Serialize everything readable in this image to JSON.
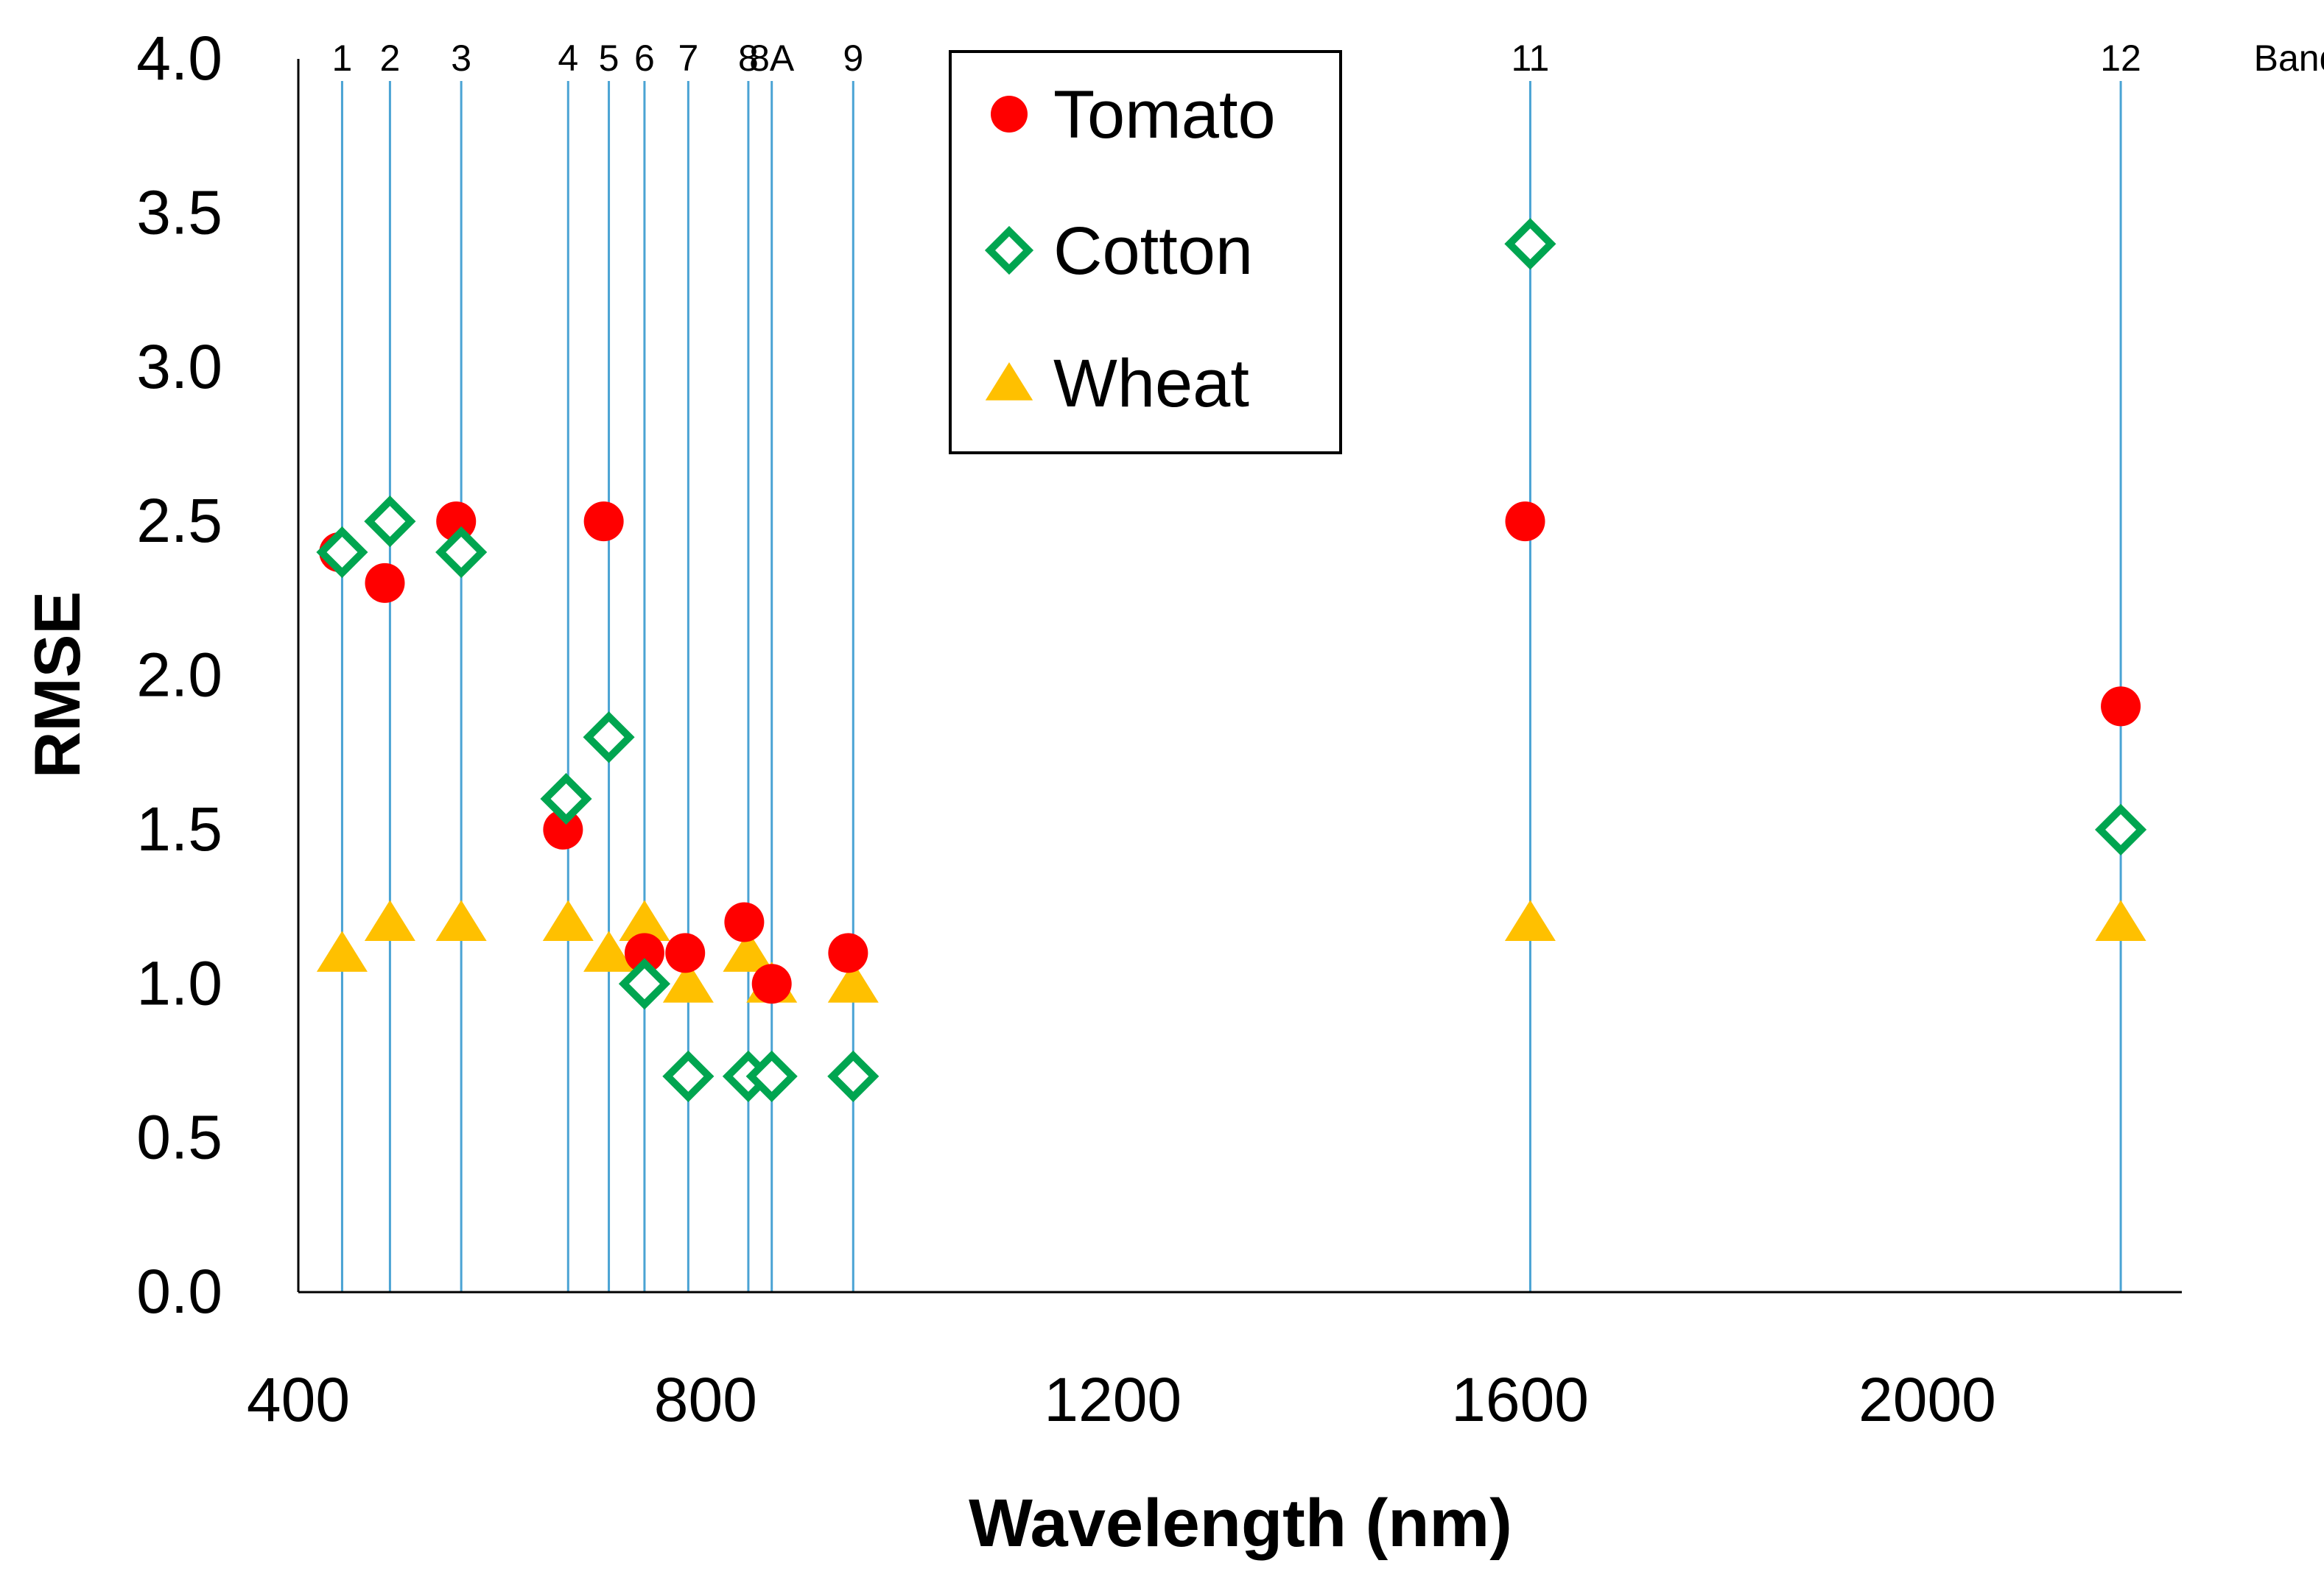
{
  "chart_data": {
    "type": "scatter",
    "title": "",
    "xlabel": "Wavelength (nm)",
    "ylabel": "RMSE",
    "xlim": [
      400,
      2250
    ],
    "ylim": [
      0,
      4.0
    ],
    "x_ticks": [
      400,
      800,
      1200,
      1600,
      2000
    ],
    "x_tick_labels": [
      "400",
      "800",
      "1200",
      "1600",
      "2000"
    ],
    "y_ticks": [
      0,
      0.5,
      1.0,
      1.5,
      2.0,
      2.5,
      3.0,
      3.5,
      4.0
    ],
    "y_tick_labels": [
      "0.0",
      "0.5",
      "1.0",
      "1.5",
      "2.0",
      "2.5",
      "3.0",
      "3.5",
      "4.0"
    ],
    "band_axis_label": "Band",
    "bands": [
      {
        "label": "1",
        "wavelength": 443
      },
      {
        "label": "2",
        "wavelength": 490
      },
      {
        "label": "3",
        "wavelength": 560
      },
      {
        "label": "4",
        "wavelength": 665
      },
      {
        "label": "5",
        "wavelength": 705
      },
      {
        "label": "6",
        "wavelength": 740
      },
      {
        "label": "7",
        "wavelength": 783
      },
      {
        "label": "8",
        "wavelength": 842
      },
      {
        "label": "8A",
        "wavelength": 865
      },
      {
        "label": "9",
        "wavelength": 945
      },
      {
        "label": "11",
        "wavelength": 1610
      },
      {
        "label": "12",
        "wavelength": 2190
      }
    ],
    "series": [
      {
        "name": "Tomato",
        "marker": "circle",
        "color": "#ff0000",
        "points": [
          {
            "x": 440,
            "y": 2.4
          },
          {
            "x": 485,
            "y": 2.3
          },
          {
            "x": 555,
            "y": 2.5
          },
          {
            "x": 660,
            "y": 1.5
          },
          {
            "x": 700,
            "y": 2.5
          },
          {
            "x": 740,
            "y": 1.1
          },
          {
            "x": 780,
            "y": 1.1
          },
          {
            "x": 838,
            "y": 1.2
          },
          {
            "x": 865,
            "y": 1.0
          },
          {
            "x": 940,
            "y": 1.1
          },
          {
            "x": 1605,
            "y": 2.5
          },
          {
            "x": 2190,
            "y": 1.9
          }
        ]
      },
      {
        "name": "Cotton",
        "marker": "diamond-open",
        "color": "#00a550",
        "points": [
          {
            "x": 443,
            "y": 2.4
          },
          {
            "x": 490,
            "y": 2.5
          },
          {
            "x": 560,
            "y": 2.4
          },
          {
            "x": 663,
            "y": 1.6
          },
          {
            "x": 705,
            "y": 1.8
          },
          {
            "x": 740,
            "y": 1.0
          },
          {
            "x": 783,
            "y": 0.7
          },
          {
            "x": 842,
            "y": 0.7
          },
          {
            "x": 865,
            "y": 0.7
          },
          {
            "x": 945,
            "y": 0.7
          },
          {
            "x": 1610,
            "y": 3.4
          },
          {
            "x": 2190,
            "y": 1.5
          }
        ]
      },
      {
        "name": "Wheat",
        "marker": "triangle",
        "color": "#ffc000",
        "points": [
          {
            "x": 443,
            "y": 1.1
          },
          {
            "x": 490,
            "y": 1.2
          },
          {
            "x": 560,
            "y": 1.2
          },
          {
            "x": 665,
            "y": 1.2
          },
          {
            "x": 705,
            "y": 1.1
          },
          {
            "x": 740,
            "y": 1.2
          },
          {
            "x": 783,
            "y": 1.0
          },
          {
            "x": 842,
            "y": 1.1
          },
          {
            "x": 865,
            "y": 1.0
          },
          {
            "x": 945,
            "y": 1.0
          },
          {
            "x": 1610,
            "y": 1.2
          },
          {
            "x": 2190,
            "y": 1.2
          }
        ]
      }
    ],
    "legend": {
      "placement": "top-center",
      "entries": [
        "Tomato",
        "Cotton",
        "Wheat"
      ]
    },
    "band_line_color": "#4aa3d4",
    "grid": false
  }
}
